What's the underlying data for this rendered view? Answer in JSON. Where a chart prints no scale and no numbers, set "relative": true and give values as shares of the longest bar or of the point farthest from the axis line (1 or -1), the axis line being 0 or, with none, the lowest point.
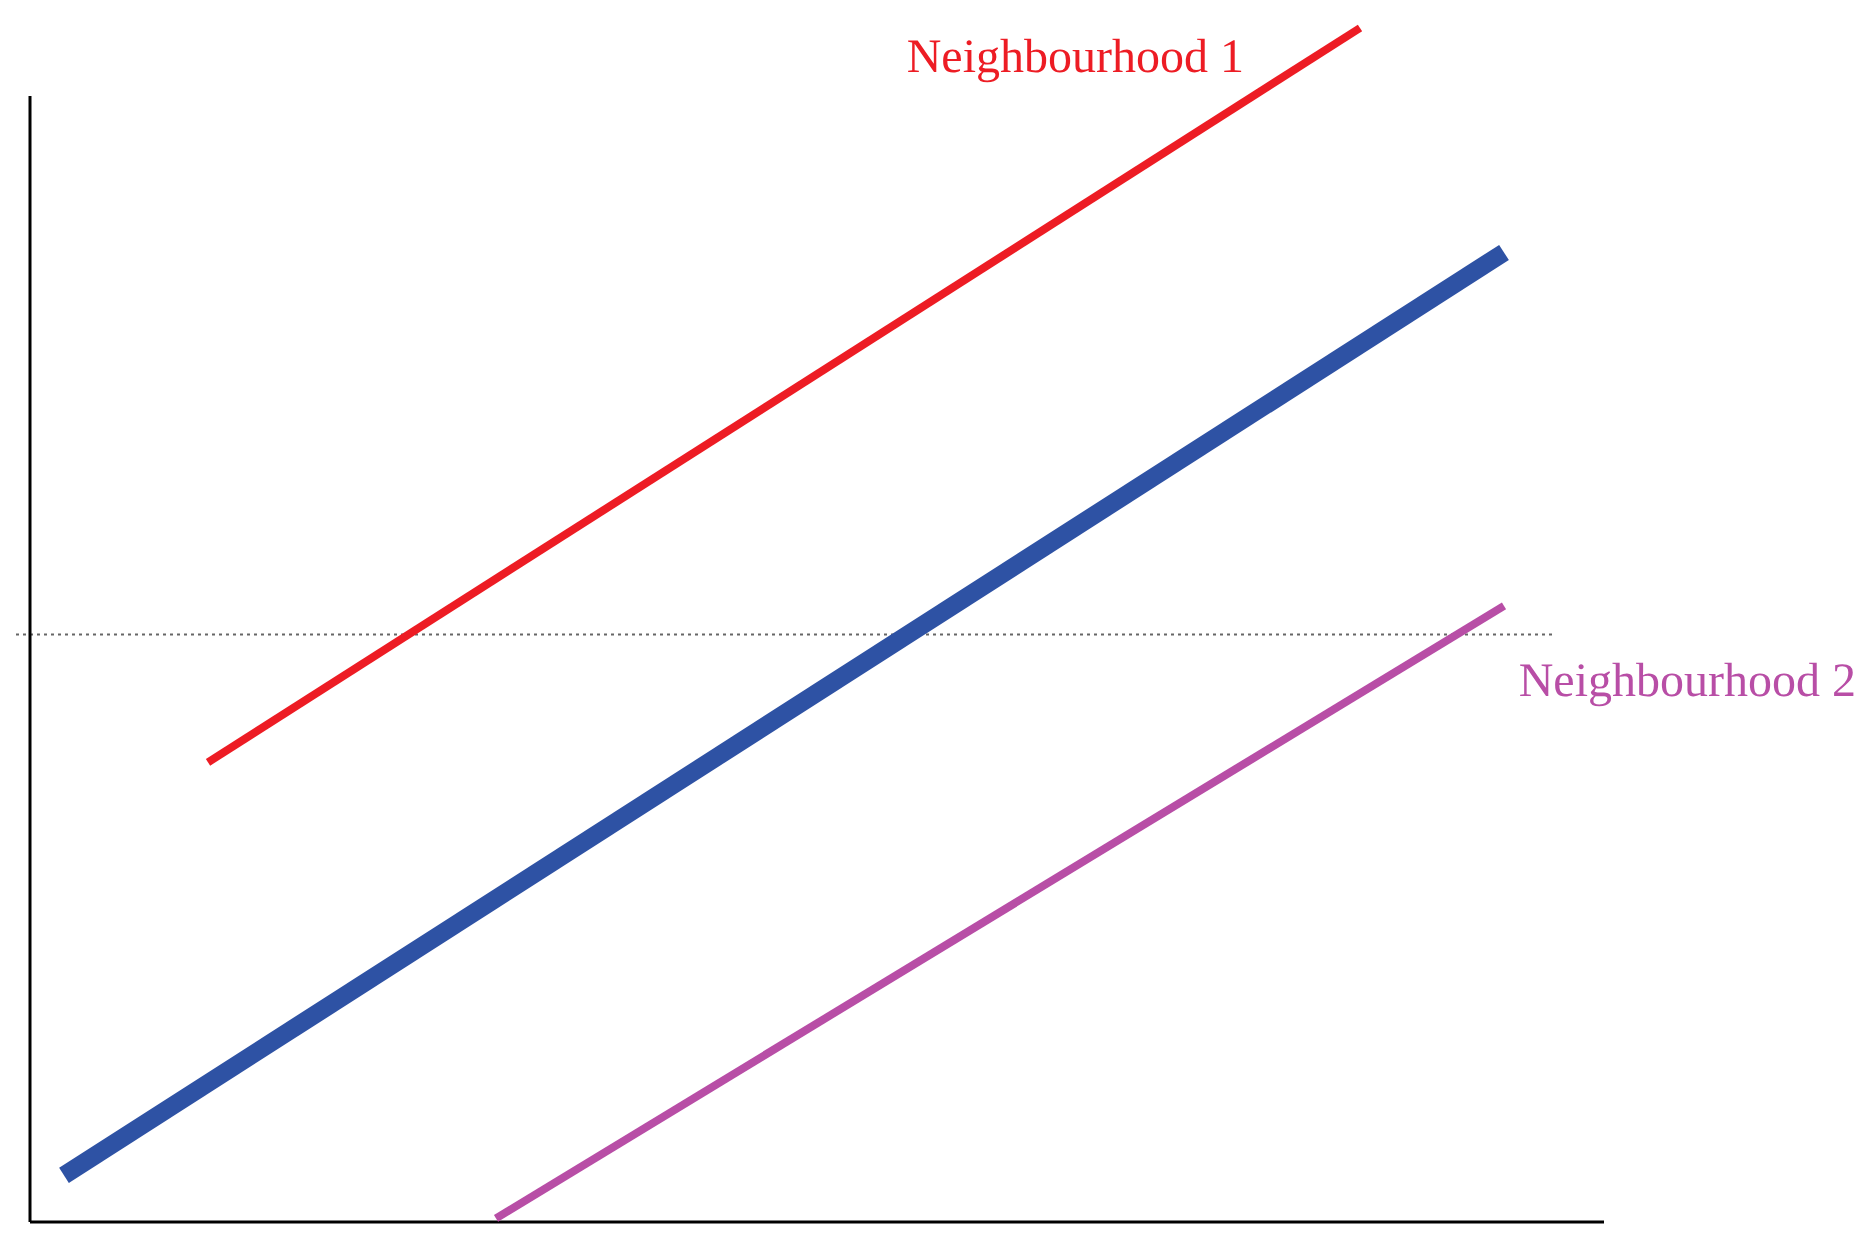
{
  "chart_data": {
    "type": "line",
    "relative": true,
    "categories": [
      null,
      null,
      null,
      null,
      null,
      null,
      null,
      null,
      null,
      null,
      null
    ],
    "marker": "none",
    "series": [
      {
        "name": "Neighbourhood 1",
        "color": "#ed1c24",
        "values": [
          null,
          0.385,
          null,
          null,
          null,
          null,
          null,
          null,
          null,
          1,
          null
        ]
      },
      {
        "color": "#2e52a4",
        "values": [
          0.039,
          null,
          null,
          null,
          null,
          null,
          null,
          null,
          null,
          null,
          0.812
        ]
      },
      {
        "name": "Neighbourhood 2",
        "color": "#b84ea6",
        "values": [
          null,
          null,
          null,
          0.003,
          null,
          null,
          null,
          null,
          null,
          null,
          0.516
        ]
      }
    ],
    "ref_lines": [
      {
        "axis": "y",
        "value": 0.492,
        "color": "#666666",
        "line_style": "dotted"
      }
    ]
  }
}
